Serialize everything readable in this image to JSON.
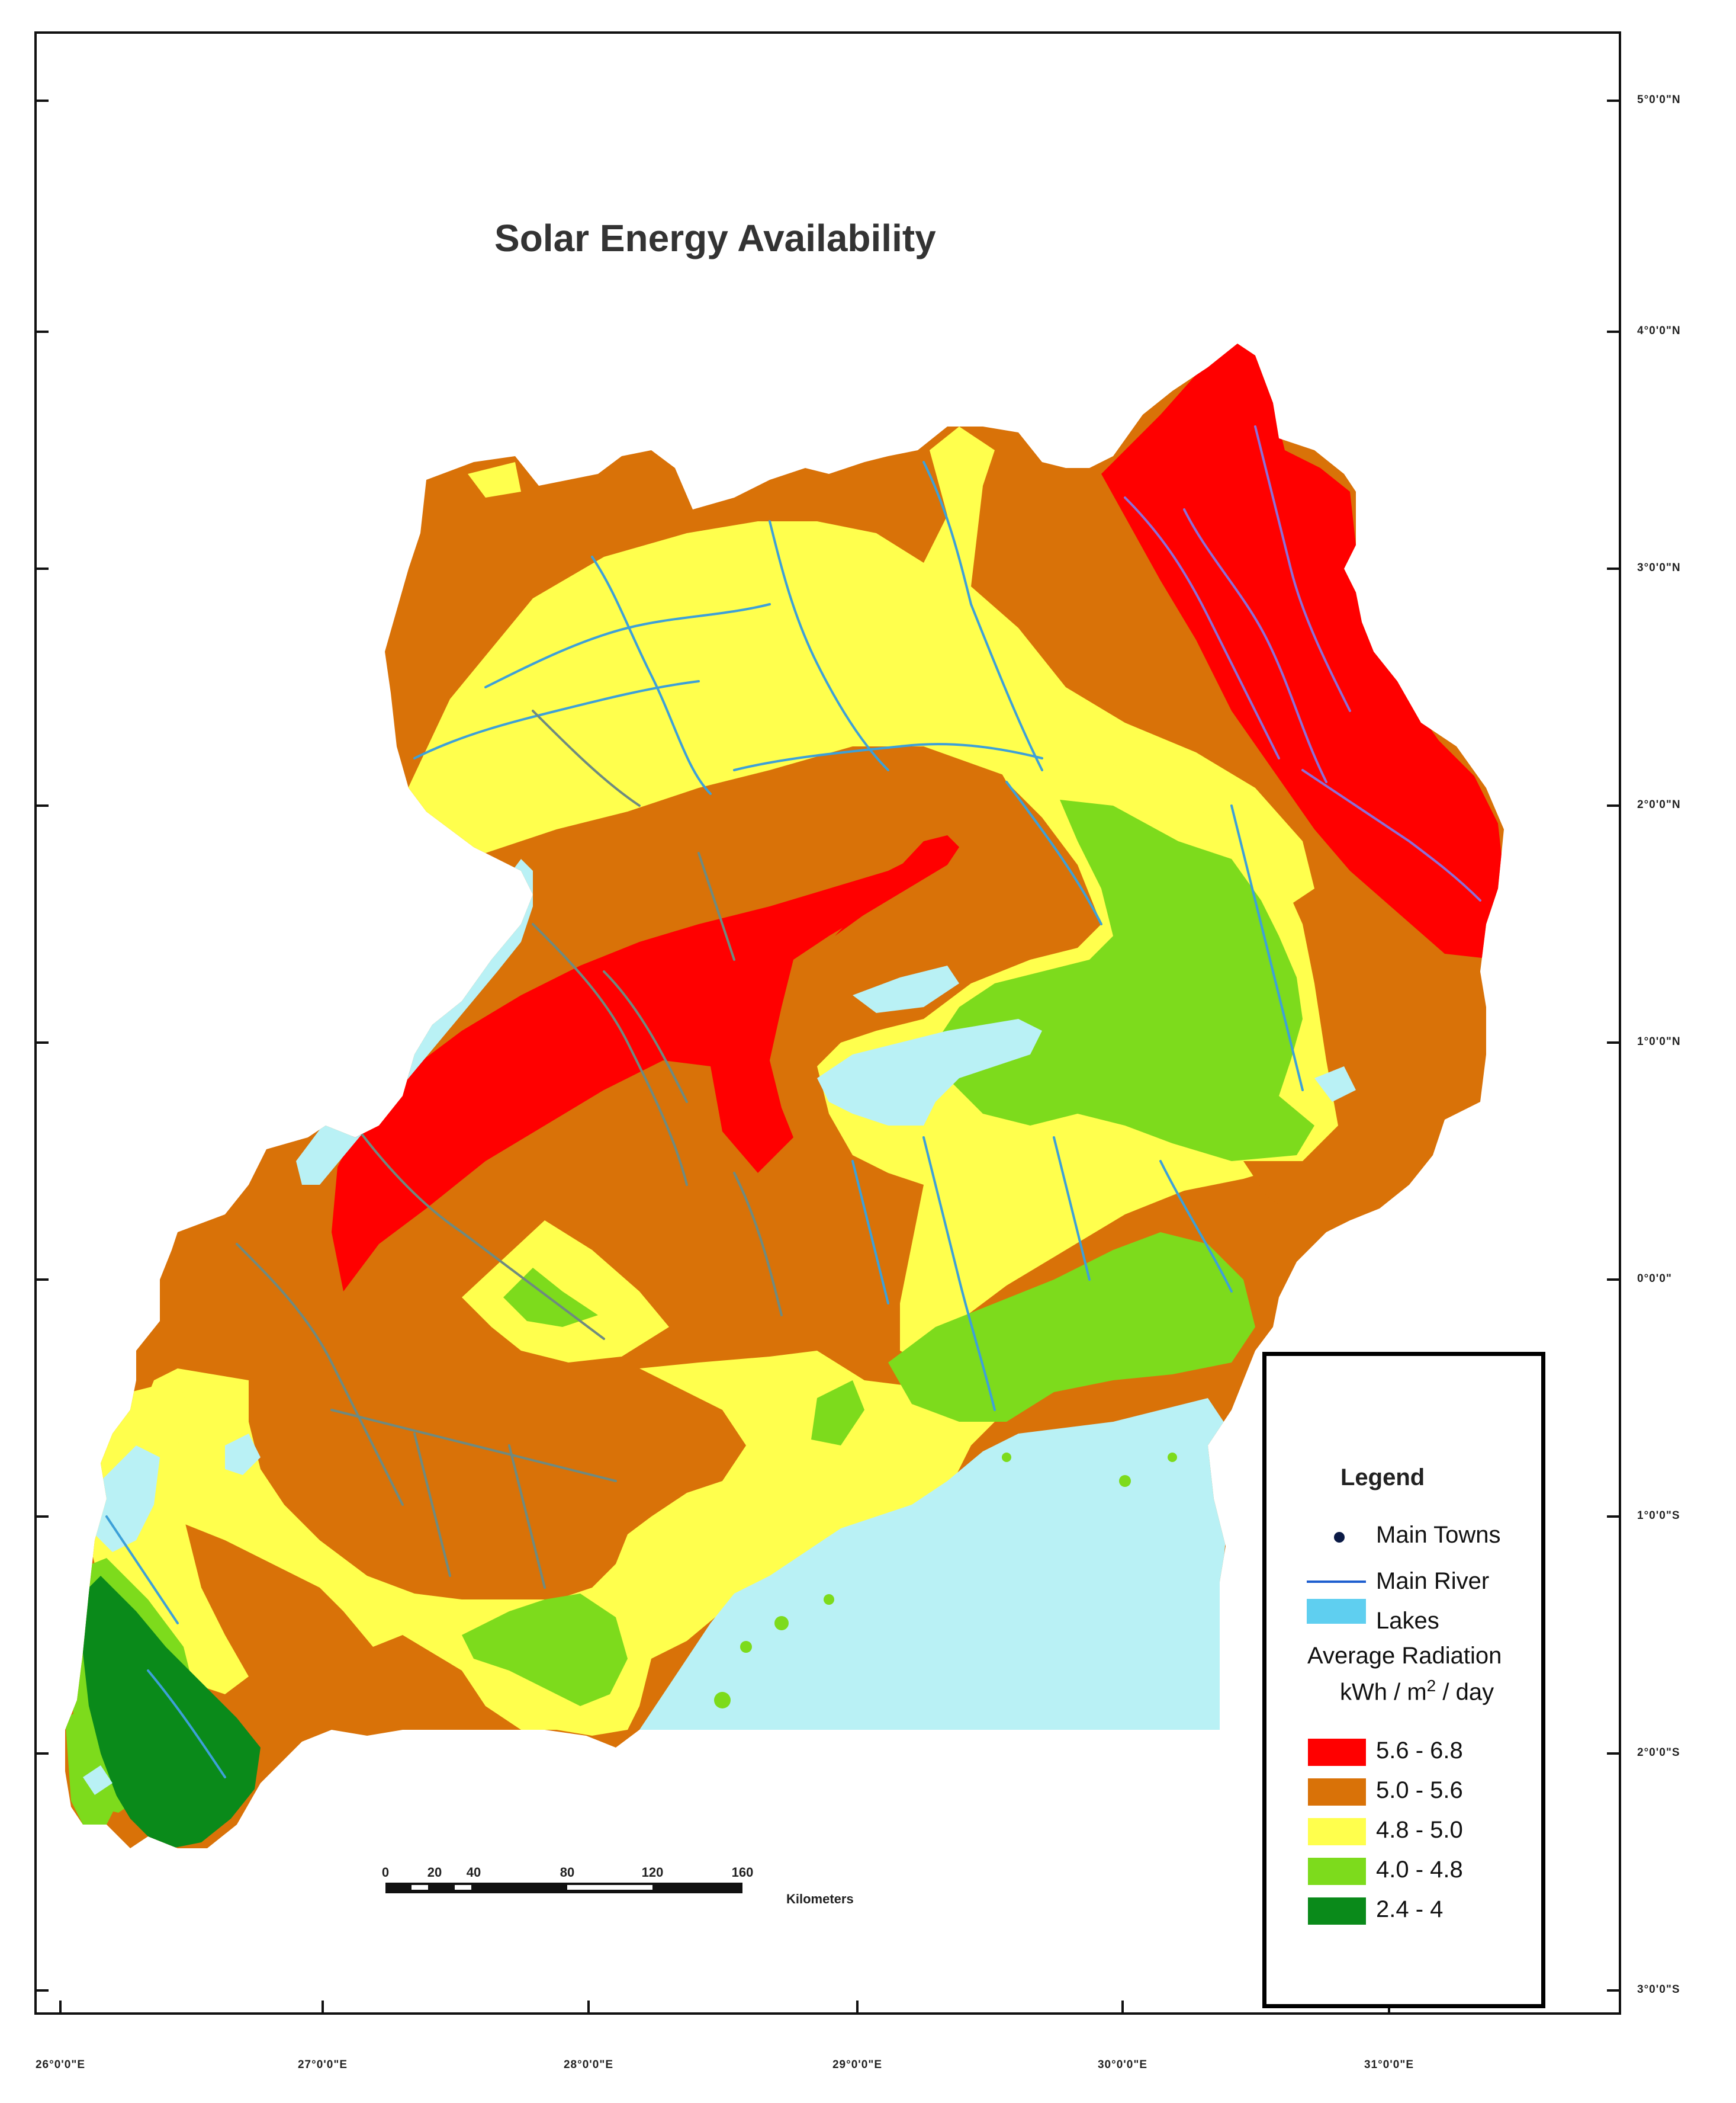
{
  "map": {
    "title": "Solar Energy Availability",
    "latitude_labels": [
      "5°0'0\"N",
      "4°0'0\"N",
      "3°0'0\"N",
      "2°0'0\"N",
      "1°0'0\"N",
      "0°0'0\"",
      "1°0'0\"S",
      "2°0'0\"S",
      "3°0'0\"S"
    ],
    "longitude_labels": [
      "26°0'0\"E",
      "27°0'0\"E",
      "28°0'0\"E",
      "29°0'0\"E",
      "30°0'0\"E",
      "31°0'0\"E"
    ],
    "scale_bar": {
      "ticks": [
        "0",
        "20",
        "40",
        "80",
        "120",
        "160"
      ],
      "unit": "Kilometers"
    }
  },
  "legend": {
    "title": "Legend",
    "main_towns": "Main  Towns",
    "main_river": "Main River",
    "lakes": "Lakes",
    "radiation_title": "Average Radiation",
    "radiation_unit_pre": "kWh / m",
    "radiation_unit_sup": "2",
    "radiation_unit_post": " / day",
    "classes": [
      {
        "label": "5.6 - 6.8",
        "color": "#ff0000"
      },
      {
        "label": "5.0 - 5.6",
        "color": "#d97208"
      },
      {
        "label": "4.8 - 5.0",
        "color": "#ffff4d"
      },
      {
        "label": "4.0 - 4.8",
        "color": "#7ddb1c"
      },
      {
        "label": "2.4 - 4",
        "color": "#0a8a1a"
      }
    ]
  },
  "colors": {
    "lake": "#b9f1f5",
    "river": "#3da0d8",
    "river_on_orange": "#6e8a80",
    "lake_swatch": "#5fcff0",
    "river_swatch": "#1f5fcf",
    "town": "#0b1a45"
  }
}
